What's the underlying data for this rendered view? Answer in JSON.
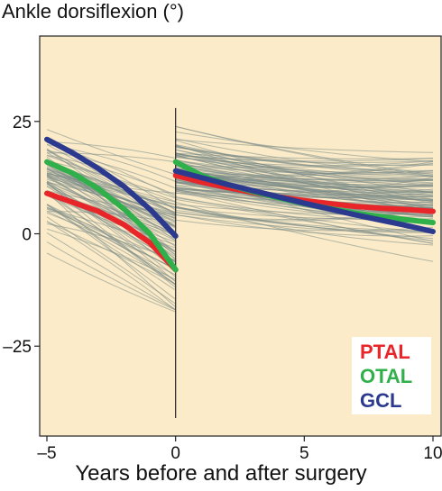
{
  "title": "Ankle dorsiflexion (°)",
  "chart_data": {
    "type": "line",
    "title": "Ankle dorsiflexion (°)",
    "xlabel": "Years before and after surgery",
    "ylabel": "",
    "xlim": [
      -5,
      10
    ],
    "ylim": [
      -45,
      44
    ],
    "xticks": [
      -5,
      0,
      5,
      10
    ],
    "xtick_labels": [
      "–5",
      "0",
      "5",
      "10"
    ],
    "yticks": [
      25,
      0,
      -25
    ],
    "ytick_labels": [
      "25",
      "0",
      "–25"
    ],
    "background": "#fbebc8",
    "individual_trajectories": {
      "color": "#7a8a86",
      "description_count_visible": "many",
      "note_break_at": 0
    },
    "series": [
      {
        "name": "PTAL",
        "color": "#e8262a",
        "before": {
          "x": [
            -5,
            -4,
            -3,
            -2,
            -1,
            0
          ],
          "y": [
            9,
            7,
            5,
            2,
            -2,
            -8
          ]
        },
        "after": {
          "x": [
            0,
            1,
            2,
            3,
            4,
            5,
            6,
            7,
            8,
            9,
            10
          ],
          "y": [
            13,
            11.5,
            10.3,
            9.2,
            8.2,
            7.4,
            6.7,
            6.1,
            5.7,
            5.4,
            5
          ]
        }
      },
      {
        "name": "OTAL",
        "color": "#2fb04a",
        "before": {
          "x": [
            -5,
            -4,
            -3,
            -2,
            -1,
            0
          ],
          "y": [
            16,
            13.5,
            10,
            5.5,
            0,
            -8
          ]
        },
        "after": {
          "x": [
            0,
            1,
            2,
            3,
            4,
            5,
            6,
            7,
            8,
            9,
            10
          ],
          "y": [
            16,
            13,
            11,
            9.4,
            8,
            6.7,
            5.6,
            4.6,
            3.8,
            3.1,
            2.5
          ]
        }
      },
      {
        "name": "GCL",
        "color": "#2b3a8f",
        "before": {
          "x": [
            -5,
            -4,
            -3,
            -2,
            -1,
            0
          ],
          "y": [
            21,
            18,
            14.5,
            10.5,
            5.5,
            -0.5
          ]
        },
        "after": {
          "x": [
            0,
            1,
            2,
            3,
            4,
            5,
            6,
            7,
            8,
            9,
            10
          ],
          "y": [
            14,
            12.5,
            11,
            9.6,
            8.2,
            6.8,
            5.5,
            4.2,
            3,
            1.8,
            0.5
          ]
        }
      }
    ],
    "legend": {
      "position": "bottom-right",
      "entries": [
        {
          "label": "PTAL",
          "color": "#e8262a"
        },
        {
          "label": "OTAL",
          "color": "#2fb04a"
        },
        {
          "label": "GCL",
          "color": "#2b3a8f"
        }
      ]
    }
  }
}
